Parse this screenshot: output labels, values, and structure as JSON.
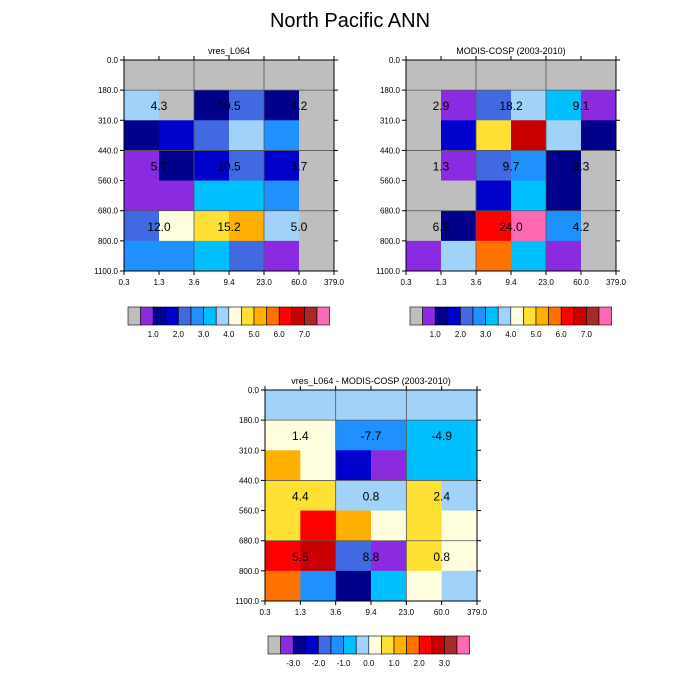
{
  "figure": {
    "title": "North Pacific ANN"
  },
  "palettes": {
    "abs": [
      "#bebebe",
      "#8a2be2",
      "#00008b",
      "#0000cd",
      "#4169e1",
      "#1e90ff",
      "#00bfff",
      "#a0d2fa",
      "#ffffe0",
      "#ffe135",
      "#ffb000",
      "#ff7200",
      "#ff0000",
      "#c80000",
      "#a52a2a",
      "#ff69b4"
    ],
    "diff": [
      "#bebebe",
      "#8a2be2",
      "#00008b",
      "#0000cd",
      "#4169e1",
      "#1e90ff",
      "#00bfff",
      "#a0d2fa",
      "#ffffe0",
      "#ffe135",
      "#ffb000",
      "#ff7200",
      "#ff0000",
      "#c80000",
      "#a52a2a",
      "#ff69b4"
    ]
  },
  "chart_data": [
    {
      "type": "heatmap",
      "title": "vres_L064",
      "x_ticks": [
        "0.3",
        "1.3",
        "3.6",
        "9.4",
        "23.0",
        "60.0",
        "379.0"
      ],
      "y_ticks": [
        "0.0",
        "180.0",
        "310.0",
        "440.0",
        "560.0",
        "680.0",
        "800.0",
        "1100.0"
      ],
      "cells": [
        [
          0,
          0,
          0,
          0,
          0,
          0
        ],
        [
          7,
          0,
          2,
          4,
          2,
          0
        ],
        [
          2,
          3,
          4,
          7,
          5,
          0
        ],
        [
          1,
          2,
          3,
          4,
          3,
          0
        ],
        [
          1,
          1,
          6,
          6,
          5,
          0
        ],
        [
          4,
          8,
          9,
          10,
          7,
          0
        ],
        [
          5,
          5,
          6,
          4,
          1,
          0
        ]
      ],
      "annotations": [
        {
          "label": "4.3",
          "col": 1,
          "row": 1.5
        },
        {
          "label": "10.5",
          "col": 3,
          "row": 1.5
        },
        {
          "label": "4.2",
          "col": 5,
          "row": 1.5
        },
        {
          "label": "5.7",
          "col": 1,
          "row": 3.5
        },
        {
          "label": "10.5",
          "col": 3,
          "row": 3.5
        },
        {
          "label": "3.7",
          "col": 5,
          "row": 3.5
        },
        {
          "label": "12.0",
          "col": 1,
          "row": 5.5
        },
        {
          "label": "15.2",
          "col": 3,
          "row": 5.5
        },
        {
          "label": "5.0",
          "col": 5,
          "row": 5.5
        }
      ],
      "colorbar_labels": [
        "1.0",
        "2.0",
        "3.0",
        "4.0",
        "5.0",
        "6.0",
        "7.0"
      ]
    },
    {
      "type": "heatmap",
      "title": "MODIS-COSP (2003-2010)",
      "x_ticks": [
        "0.3",
        "1.3",
        "3.6",
        "9.4",
        "23.0",
        "60.0",
        "379.0"
      ],
      "y_ticks": [
        "0.0",
        "180.0",
        "310.0",
        "440.0",
        "560.0",
        "680.0",
        "800.0",
        "1100.0"
      ],
      "cells": [
        [
          0,
          0,
          0,
          0,
          0,
          0
        ],
        [
          0,
          1,
          4,
          7,
          6,
          1
        ],
        [
          0,
          3,
          9,
          13,
          7,
          2
        ],
        [
          0,
          1,
          4,
          5,
          2,
          0
        ],
        [
          0,
          0,
          3,
          6,
          2,
          0
        ],
        [
          0,
          2,
          12,
          15,
          5,
          0
        ],
        [
          1,
          7,
          11,
          6,
          1,
          0
        ]
      ],
      "annotations": [
        {
          "label": "2.9",
          "col": 1,
          "row": 1.5
        },
        {
          "label": "18.2",
          "col": 3,
          "row": 1.5
        },
        {
          "label": "9.1",
          "col": 5,
          "row": 1.5
        },
        {
          "label": "1.3",
          "col": 1,
          "row": 3.5
        },
        {
          "label": "9.7",
          "col": 3,
          "row": 3.5
        },
        {
          "label": "3.3",
          "col": 5,
          "row": 3.5
        },
        {
          "label": "6.5",
          "col": 1,
          "row": 5.5
        },
        {
          "label": "24.0",
          "col": 3,
          "row": 5.5
        },
        {
          "label": "4.2",
          "col": 5,
          "row": 5.5
        }
      ],
      "colorbar_labels": [
        "1.0",
        "2.0",
        "3.0",
        "4.0",
        "5.0",
        "6.0",
        "7.0"
      ]
    },
    {
      "type": "heatmap",
      "title": "vres_L064 - MODIS-COSP (2003-2010)",
      "x_ticks": [
        "0.3",
        "1.3",
        "3.6",
        "9.4",
        "23.0",
        "60.0",
        "379.0"
      ],
      "y_ticks": [
        "0.0",
        "180.0",
        "310.0",
        "440.0",
        "560.0",
        "680.0",
        "800.0",
        "1100.0"
      ],
      "cells": [
        [
          7,
          7,
          7,
          7,
          7,
          7
        ],
        [
          8,
          8,
          5,
          5,
          6,
          6
        ],
        [
          10,
          8,
          3,
          1,
          6,
          6
        ],
        [
          9,
          9,
          7,
          7,
          9,
          7
        ],
        [
          9,
          12,
          10,
          8,
          9,
          8
        ],
        [
          12,
          13,
          4,
          1,
          9,
          8
        ],
        [
          11,
          5,
          2,
          6,
          8,
          7
        ]
      ],
      "annotations": [
        {
          "label": "1.4",
          "col": 1,
          "row": 1.5
        },
        {
          "label": "-7.7",
          "col": 3,
          "row": 1.5
        },
        {
          "label": "-4.9",
          "col": 5,
          "row": 1.5
        },
        {
          "label": "4.4",
          "col": 1,
          "row": 3.5
        },
        {
          "label": "0.8",
          "col": 3,
          "row": 3.5
        },
        {
          "label": "2.4",
          "col": 5,
          "row": 3.5
        },
        {
          "label": "5.5",
          "col": 1,
          "row": 5.5
        },
        {
          "label": "8.8",
          "col": 3,
          "row": 5.5
        },
        {
          "label": "0.8",
          "col": 5,
          "row": 5.5
        }
      ],
      "colorbar_labels": [
        "-3.0",
        "-2.0",
        "-1.0",
        "0.0",
        "1.0",
        "2.0",
        "3.0"
      ]
    }
  ]
}
